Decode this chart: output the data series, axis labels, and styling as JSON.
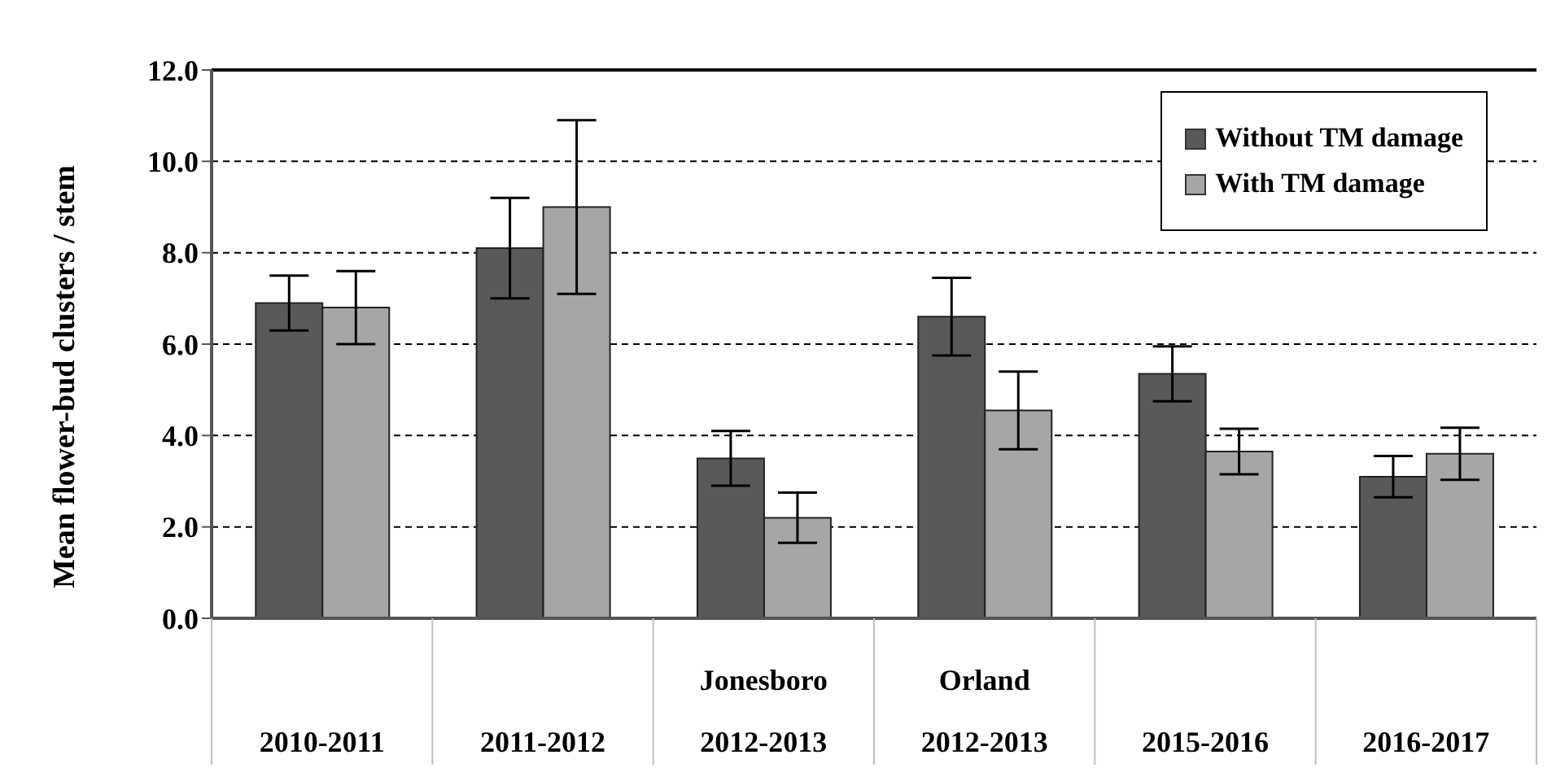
{
  "chart_data": {
    "type": "bar",
    "ylabel": "Mean flower-bud clusters / stem",
    "categories": [
      "2010-2011",
      "2011-2012",
      "Jonesboro\n2012-2013",
      "Orland\n2012-2013",
      "2015-2016",
      "2016-2017"
    ],
    "series": [
      {
        "name": "Without TM damage",
        "color": "#595959",
        "values": [
          6.9,
          8.1,
          3.5,
          6.6,
          5.35,
          3.1
        ],
        "errors": [
          0.6,
          1.1,
          0.6,
          0.85,
          0.6,
          0.45
        ]
      },
      {
        "name": "With TM damage",
        "color": "#a6a6a6",
        "values": [
          6.8,
          9.0,
          2.2,
          4.55,
          3.65,
          3.6
        ],
        "errors": [
          0.8,
          1.9,
          0.55,
          0.85,
          0.5,
          0.57
        ]
      }
    ],
    "ylim": [
      0,
      12
    ],
    "yticks": [
      {
        "value": 0,
        "label": "0.0"
      },
      {
        "value": 2,
        "label": "2.0"
      },
      {
        "value": 4,
        "label": "4.0"
      },
      {
        "value": 6,
        "label": "6.0"
      },
      {
        "value": 8,
        "label": "8.0"
      },
      {
        "value": 10,
        "label": "10.0"
      },
      {
        "value": 12,
        "label": "12.0"
      }
    ],
    "grid": "y",
    "legend": "top right"
  }
}
